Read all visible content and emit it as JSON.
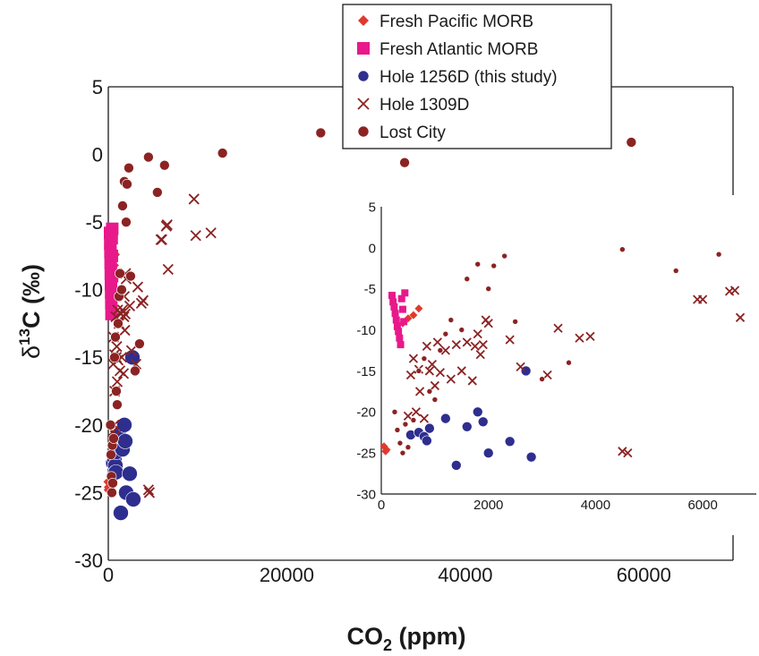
{
  "chart_data": {
    "type": "scatter",
    "xlabel": {
      "main": "CO",
      "sub": "2",
      "tail": " (ppm)"
    },
    "ylabel": {
      "pre": "δ",
      "sup": "13",
      "post": "C (‰)"
    },
    "xlim": [
      0,
      70000
    ],
    "ylim": [
      -30,
      5
    ],
    "x_ticks": [
      "0",
      "20000",
      "40000",
      "60000"
    ],
    "y_ticks": [
      "5",
      "0",
      "-5",
      "-10",
      "-15",
      "-20",
      "-25",
      "-30"
    ],
    "legend": {
      "placement": "top-center",
      "entries": [
        {
          "key": "pacific",
          "label": "Fresh Pacific MORB",
          "marker": "diamond",
          "color": "#e03a2e"
        },
        {
          "key": "atlantic",
          "label": "Fresh Atlantic MORB",
          "marker": "square",
          "color": "#e8198b"
        },
        {
          "key": "h1256",
          "label": "Hole 1256D (this study)",
          "marker": "circle",
          "color": "#2e2e8f"
        },
        {
          "key": "h1309",
          "label": "Hole 1309D",
          "marker": "x",
          "color": "#8b2323"
        },
        {
          "key": "lost",
          "label": "Lost City",
          "marker": "circle",
          "color": "#8b2323"
        }
      ]
    },
    "series": [
      {
        "name": "Fresh Pacific MORB",
        "key": "pacific",
        "x": [
          50,
          80,
          100,
          300,
          400,
          500,
          600,
          700
        ],
        "y": [
          -24.2,
          -24.8,
          -24.6,
          -9.8,
          -9.2,
          -8.6,
          -8.2,
          -7.4
        ]
      },
      {
        "name": "Fresh Atlantic MORB",
        "key": "atlantic",
        "x": [
          200,
          220,
          240,
          260,
          280,
          300,
          320,
          340,
          360,
          380,
          400,
          420,
          440
        ],
        "y": [
          -5.8,
          -6.6,
          -7.2,
          -8.0,
          -8.8,
          -9.6,
          -10.2,
          -11.0,
          -11.8,
          -6.2,
          -7.5,
          -9.0,
          -5.5
        ]
      },
      {
        "name": "Hole 1256D (this study)",
        "key": "h1256",
        "x": [
          550,
          700,
          800,
          850,
          900,
          1200,
          1400,
          1600,
          1800,
          1900,
          2000,
          2400,
          2700,
          2800
        ],
        "y": [
          -22.8,
          -22.5,
          -23.0,
          -23.5,
          -22.0,
          -20.8,
          -26.5,
          -21.8,
          -20.0,
          -21.2,
          -25.0,
          -23.6,
          -15.0,
          -25.5
        ]
      },
      {
        "name": "Hole 1309D",
        "key": "h1309",
        "x": [
          500,
          550,
          600,
          650,
          700,
          720,
          800,
          850,
          900,
          950,
          1000,
          1050,
          1100,
          1200,
          1300,
          1400,
          1500,
          1600,
          1700,
          1750,
          1800,
          1850,
          1900,
          1950,
          2000,
          2400,
          2600,
          3100,
          3300,
          3700,
          3900,
          4600,
          5900,
          6600,
          6700,
          4500,
          9600,
          11500,
          9800,
          6000,
          6500
        ],
        "y": [
          -20.5,
          -15.5,
          -13.5,
          -20.0,
          -14.8,
          -17.5,
          -20.8,
          -12.0,
          -15.0,
          -14.2,
          -16.8,
          -11.5,
          -15.2,
          -12.5,
          -16.0,
          -11.8,
          -15.0,
          -11.5,
          -16.2,
          -12.0,
          -10.5,
          -13.0,
          -11.8,
          -8.8,
          -9.2,
          -11.2,
          -14.5,
          -15.5,
          -9.8,
          -11.0,
          -10.8,
          -25.0,
          -6.3,
          -5.2,
          -8.5,
          -24.8,
          -3.3,
          -5.8,
          -6.0,
          -6.3,
          -5.3
        ]
      },
      {
        "name": "Lost City",
        "key": "lost",
        "x": [
          250,
          300,
          350,
          400,
          450,
          500,
          600,
          700,
          800,
          900,
          1000,
          1100,
          1200,
          1300,
          1500,
          1600,
          1800,
          2000,
          2100,
          2300,
          2500,
          3000,
          3500,
          4500,
          5500,
          6300,
          12800,
          23800,
          33200,
          58600
        ],
        "y": [
          -20.0,
          -22.2,
          -23.8,
          -25.0,
          -21.5,
          -24.3,
          -21.0,
          -15.0,
          -13.5,
          -17.5,
          -18.5,
          -12.5,
          -10.5,
          -8.8,
          -10.0,
          -3.8,
          -2.0,
          -5.0,
          -2.2,
          -1.0,
          -9.0,
          -16.0,
          -14.0,
          -0.2,
          -2.8,
          -0.8,
          0.1,
          1.6,
          -0.6,
          0.9
        ]
      }
    ],
    "inset": {
      "xlim": [
        0,
        7000
      ],
      "ylim": [
        -30,
        5
      ],
      "x_ticks": [
        "0",
        "2000",
        "4000",
        "6000"
      ],
      "y_ticks": [
        "5",
        "0",
        "-5",
        "-10",
        "-15",
        "-20",
        "-25",
        "-30"
      ]
    }
  }
}
